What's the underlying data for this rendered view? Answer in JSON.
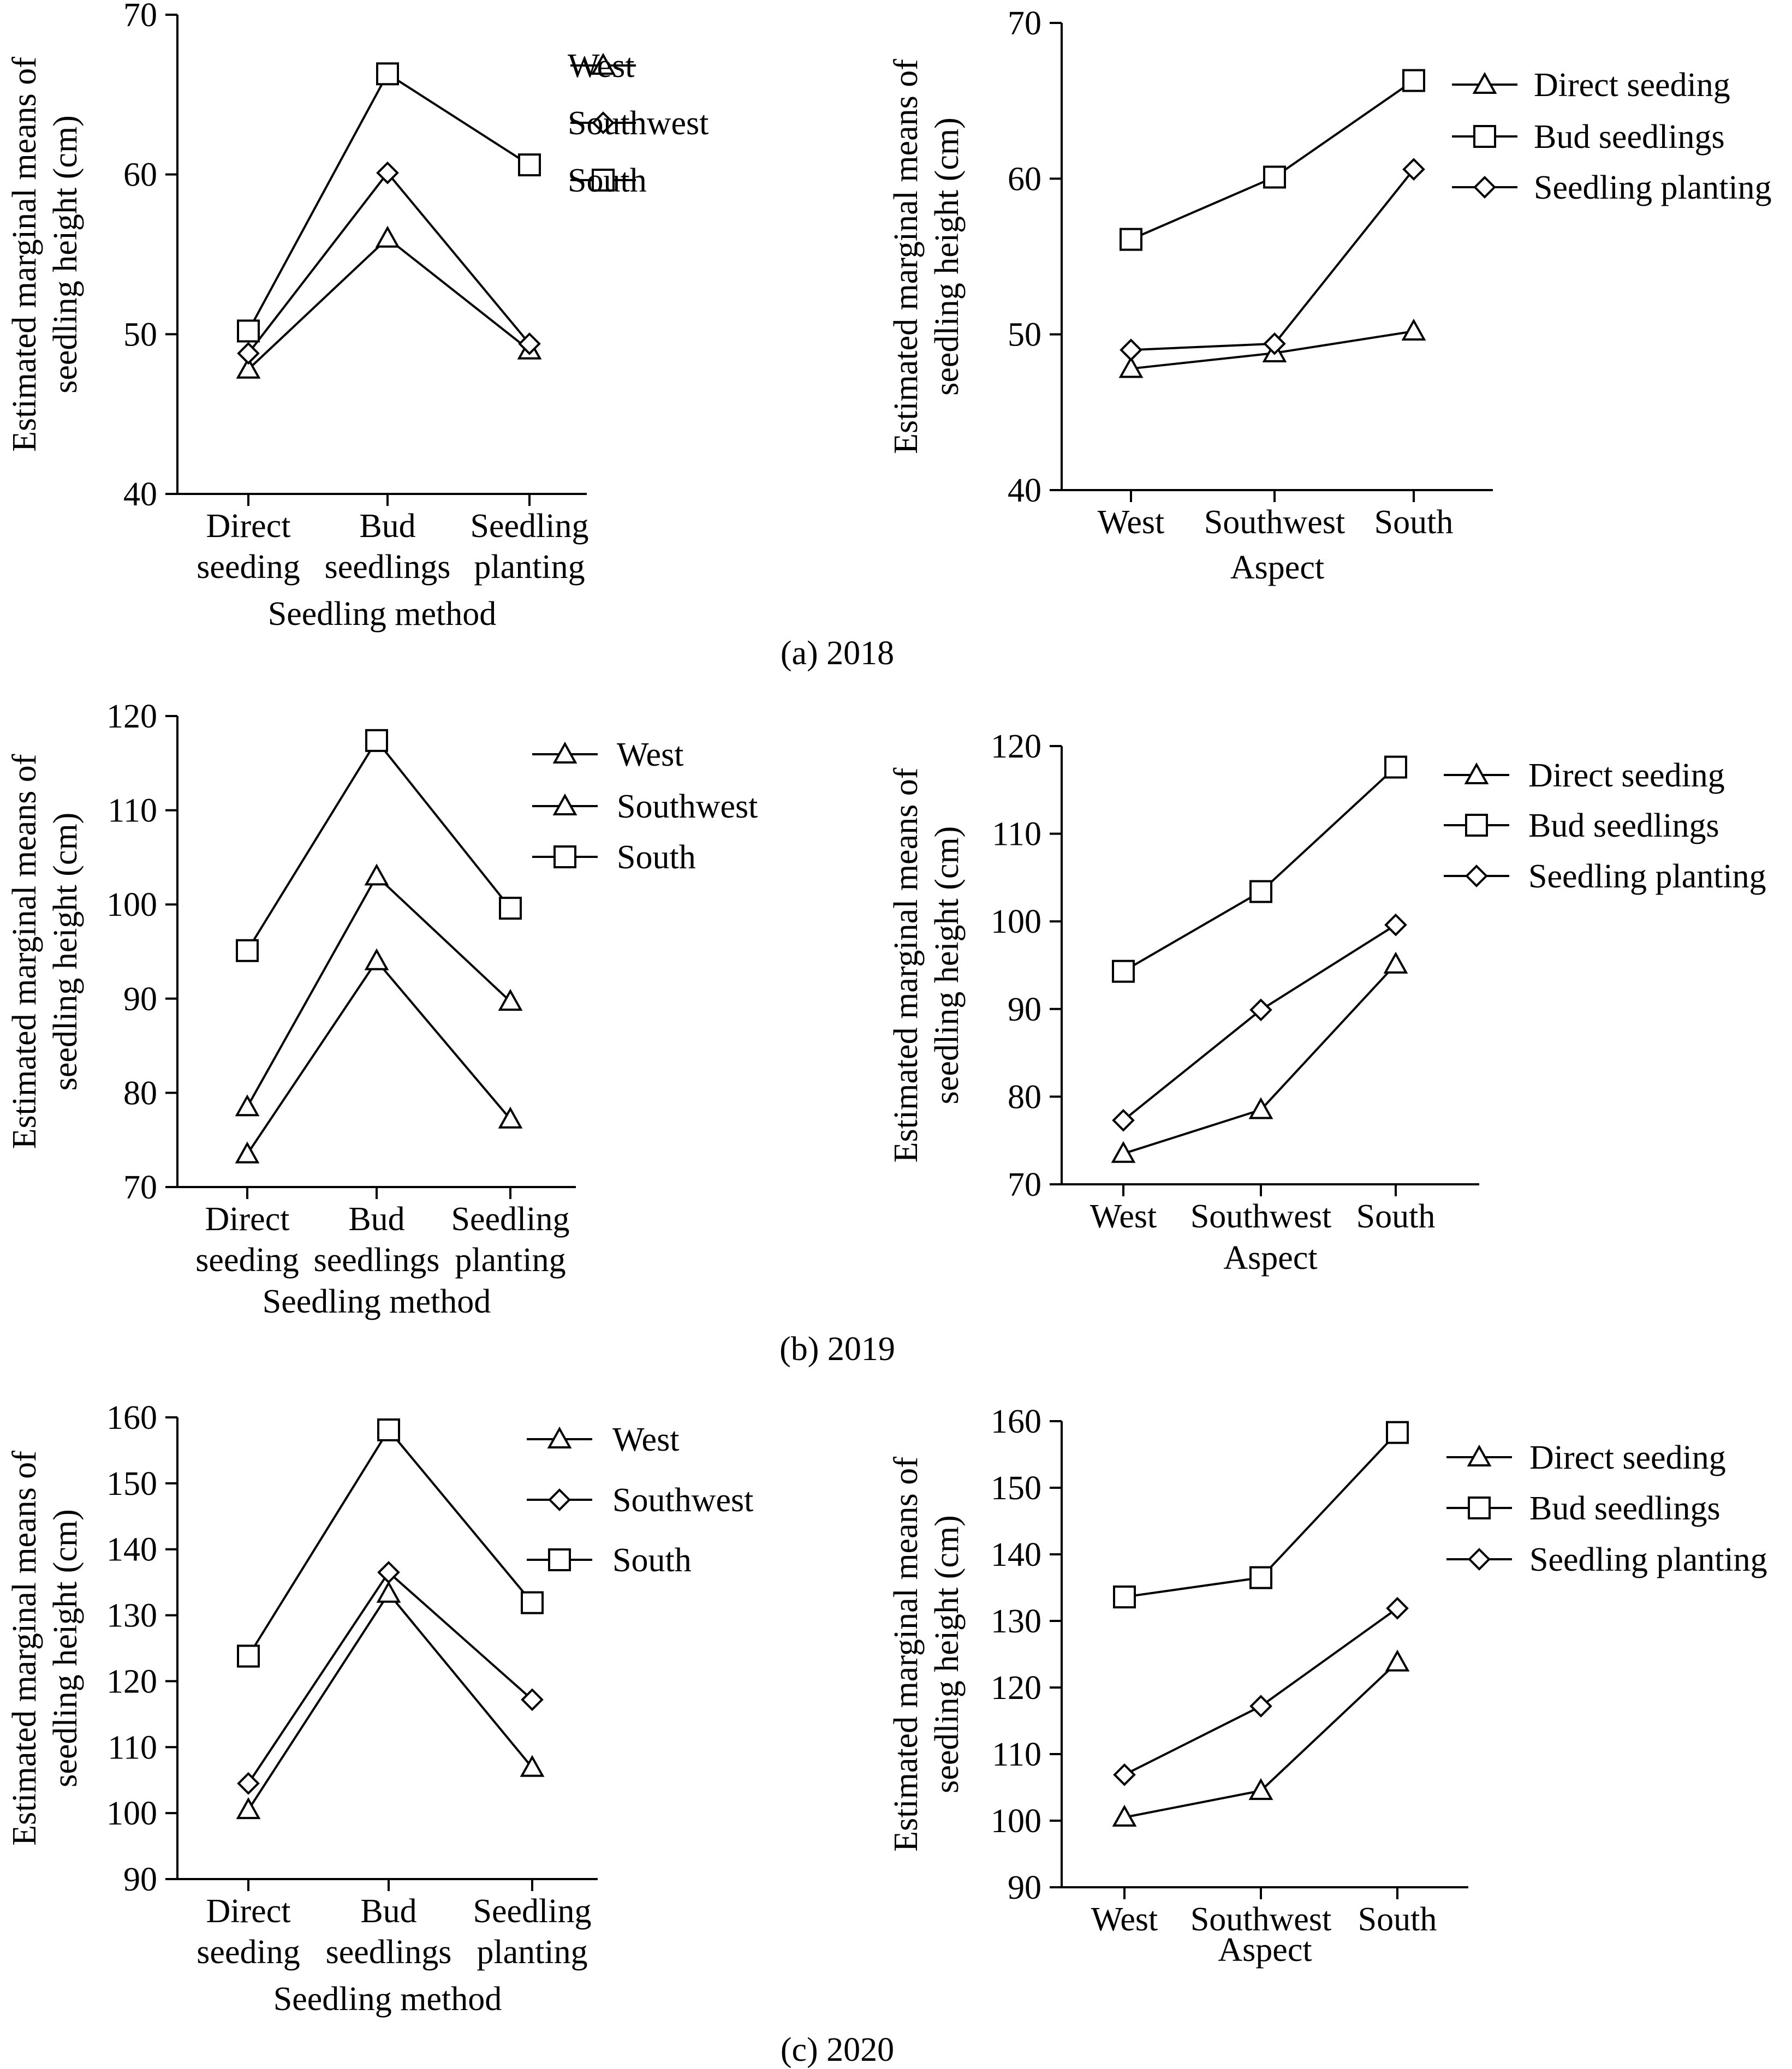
{
  "chart_data": [
    {
      "id": "a-left",
      "type": "line",
      "ylabel": [
        "Estimated marginal means of",
        "seedling height (cm)"
      ],
      "xlabel": "Seedling method",
      "ylim": [
        40,
        70
      ],
      "yticks": [
        40,
        50,
        60,
        70
      ],
      "categories": [
        [
          "Direct",
          "seeding"
        ],
        [
          "Bud",
          "seedlings"
        ],
        [
          "Seedling",
          "planting"
        ]
      ],
      "series": [
        {
          "name": "West",
          "marker": "triangle",
          "values": [
            47.8,
            56.0,
            49.0
          ]
        },
        {
          "name": "Southwest",
          "marker": "diamond",
          "values": [
            48.8,
            60.1,
            49.4
          ]
        },
        {
          "name": "South",
          "marker": "square",
          "values": [
            50.2,
            66.3,
            60.6
          ]
        }
      ]
    },
    {
      "id": "a-right",
      "type": "line",
      "ylabel": [
        "Estimated marginal means of",
        "seedling height (cm)"
      ],
      "xlabel": "Aspect",
      "ylim": [
        40,
        70
      ],
      "yticks": [
        40,
        50,
        60,
        70
      ],
      "categories": [
        [
          "West"
        ],
        [
          "Southwest"
        ],
        [
          "South"
        ]
      ],
      "series": [
        {
          "name": "Direct seeding",
          "marker": "triangle",
          "values": [
            47.8,
            48.8,
            50.2
          ]
        },
        {
          "name": "Bud seedlings",
          "marker": "square",
          "values": [
            56.1,
            60.1,
            66.3
          ]
        },
        {
          "name": "Seedling planting",
          "marker": "diamond",
          "values": [
            49.0,
            49.4,
            60.6
          ]
        }
      ]
    },
    {
      "id": "b-left",
      "type": "line",
      "ylabel": [
        "Estimated marginal means of",
        "seedling height (cm)"
      ],
      "xlabel": "Seedling method",
      "ylim": [
        70,
        120
      ],
      "yticks": [
        70,
        80,
        90,
        100,
        110,
        120
      ],
      "categories": [
        [
          "Direct",
          "seeding"
        ],
        [
          "Bud",
          "seedlings"
        ],
        [
          "Seedling",
          "planting"
        ]
      ],
      "series": [
        {
          "name": "West",
          "marker": "triangle",
          "values": [
            73.5,
            94.0,
            77.2
          ]
        },
        {
          "name": "Southwest",
          "marker": "triangle",
          "values": [
            78.5,
            103.0,
            89.7
          ]
        },
        {
          "name": "South",
          "marker": "square",
          "values": [
            95.1,
            117.4,
            99.6
          ]
        }
      ]
    },
    {
      "id": "b-right",
      "type": "line",
      "ylabel": [
        "Estimated marginal means of",
        "seedling height (cm)"
      ],
      "xlabel": "Aspect",
      "ylim": [
        70,
        120
      ],
      "yticks": [
        70,
        80,
        90,
        100,
        110,
        120
      ],
      "categories": [
        [
          "West"
        ],
        [
          "Southwest"
        ],
        [
          "South"
        ]
      ],
      "series": [
        {
          "name": "Direct seeding",
          "marker": "triangle",
          "values": [
            73.5,
            78.5,
            95.1
          ]
        },
        {
          "name": "Bud seedlings",
          "marker": "square",
          "values": [
            94.3,
            103.4,
            117.6
          ]
        },
        {
          "name": "Seedling planting",
          "marker": "diamond",
          "values": [
            77.3,
            89.9,
            99.6
          ]
        }
      ]
    },
    {
      "id": "c-left",
      "type": "line",
      "ylabel": [
        "Estimated marginal means of",
        "seedling height (cm)"
      ],
      "xlabel": "Seedling method",
      "ylim": [
        90,
        160
      ],
      "yticks": [
        90,
        100,
        110,
        120,
        130,
        140,
        150,
        160
      ],
      "categories": [
        [
          "Direct",
          "seeding"
        ],
        [
          "Bud",
          "seedlings"
        ],
        [
          "Seedling",
          "planting"
        ]
      ],
      "series": [
        {
          "name": "West",
          "marker": "triangle",
          "values": [
            100.5,
            133.3,
            106.9
          ]
        },
        {
          "name": "Southwest",
          "marker": "diamond",
          "values": [
            104.5,
            136.5,
            117.2
          ]
        },
        {
          "name": "South",
          "marker": "square",
          "values": [
            123.8,
            158.1,
            131.9
          ]
        }
      ]
    },
    {
      "id": "c-right",
      "type": "line",
      "ylabel": [
        "Estimated marginal means of",
        "seedling height (cm)"
      ],
      "xlabel": "Aspect",
      "ylim": [
        90,
        160
      ],
      "yticks": [
        90,
        100,
        110,
        120,
        130,
        140,
        150,
        160
      ],
      "categories": [
        [
          "West"
        ],
        [
          "Southwest"
        ],
        [
          "South"
        ]
      ],
      "series": [
        {
          "name": "Direct seeding",
          "marker": "triangle",
          "values": [
            100.5,
            104.5,
            123.8
          ]
        },
        {
          "name": "Bud seedlings",
          "marker": "square",
          "values": [
            133.6,
            136.5,
            158.3
          ]
        },
        {
          "name": "Seedling planting",
          "marker": "diamond",
          "values": [
            106.9,
            117.2,
            131.9
          ]
        }
      ]
    }
  ],
  "captions": [
    "(a) 2018",
    "(b) 2019",
    "(c) 2020"
  ]
}
